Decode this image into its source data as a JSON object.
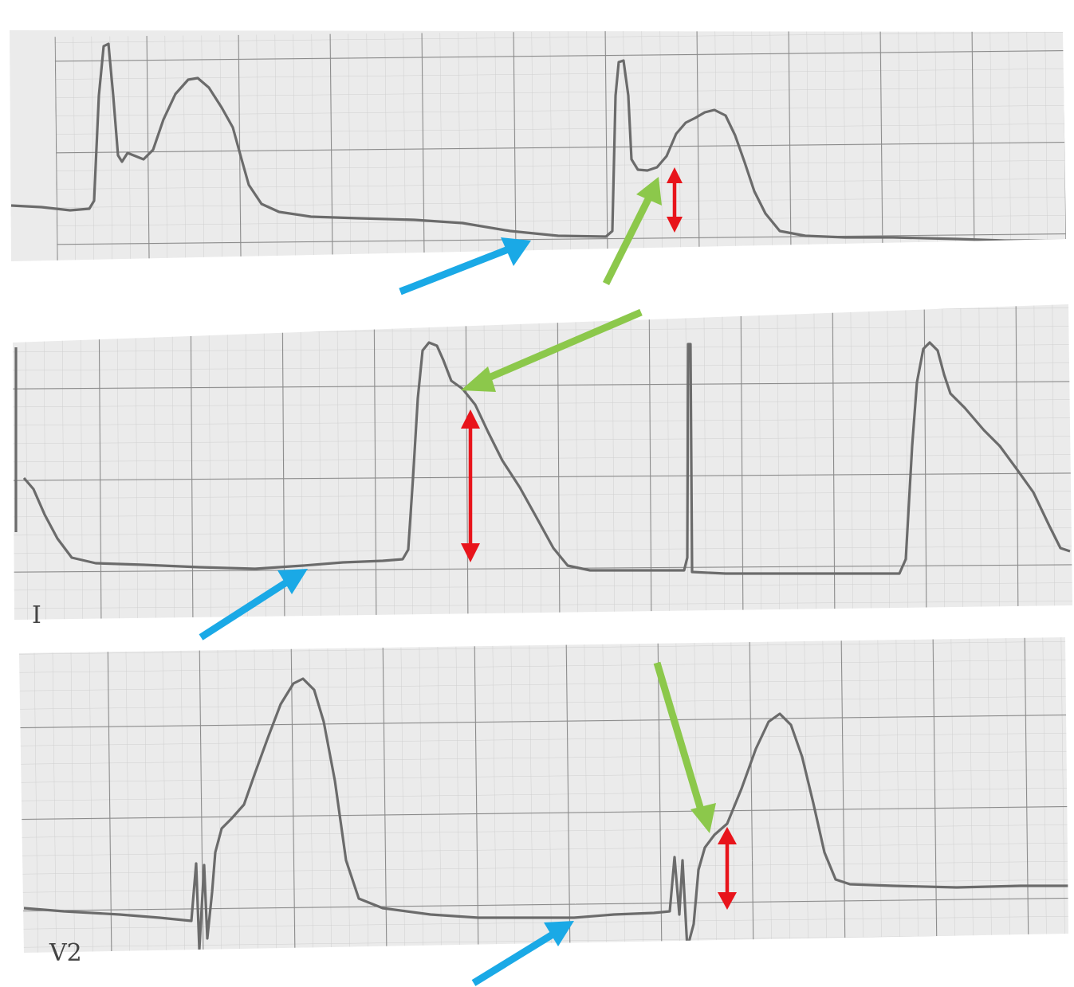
{
  "strips": [
    {
      "id": "strip-1",
      "lead_label": ""
    },
    {
      "id": "strip-2",
      "lead_label": "I"
    },
    {
      "id": "strip-3",
      "lead_label": "V2"
    }
  ],
  "colors": {
    "paper": "#ebebeb",
    "grid_minor": "#cfcfcf",
    "grid_major": "#8a8a8a",
    "trace": "#6b6b6b",
    "baseline_arrow": "#1aa9e6",
    "j_point_arrow": "#8cc84b",
    "st_elevation_marker": "#e8141b"
  },
  "annotations": {
    "baseline_arrow_icon": "blue-arrow",
    "j_point_arrow_icon": "green-arrow",
    "st_elevation_marker_icon": "red-double-arrow"
  }
}
